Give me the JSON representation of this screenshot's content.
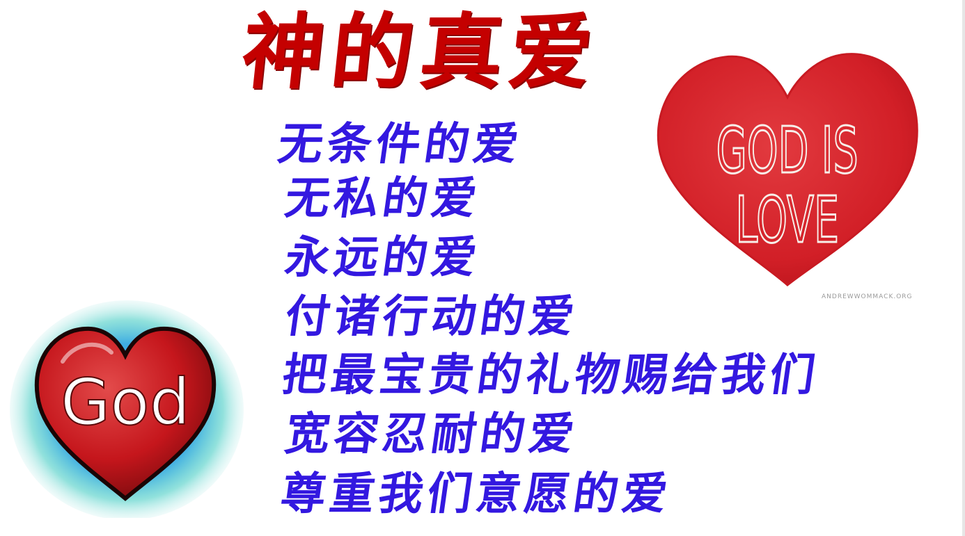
{
  "title": "神的真爱",
  "lines": [
    "无条件的爱",
    "无私的爱",
    "永远的爱",
    "付诸行动的爱",
    "把最宝贵的礼物赐给我们",
    "宽容忍耐的爱",
    "尊重我们意愿的爱"
  ],
  "images": {
    "god_is_love": {
      "text": "GOD IS LOVE",
      "watermark": "ANDREWWOMMACK.ORG",
      "color": "#d6232b"
    },
    "god_heart": {
      "text": "God",
      "heart_color": "#c5161c",
      "glow_color": "#3fa6d8"
    }
  },
  "colors": {
    "title": "#c40000",
    "lines": "#3318e0",
    "background": "#ffffff"
  }
}
